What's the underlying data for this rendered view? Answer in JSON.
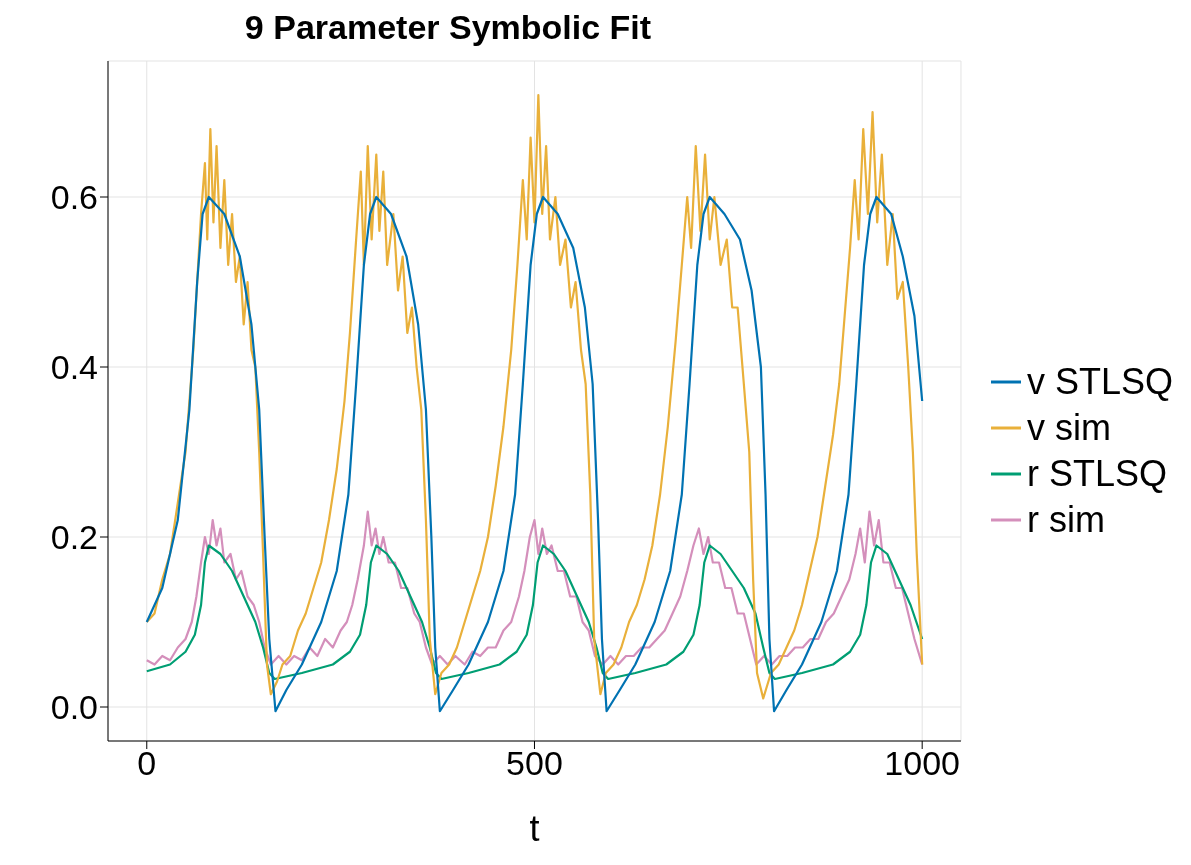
{
  "chart_data": {
    "type": "line",
    "title": "9 Parameter Symbolic Fit",
    "xlabel": "t",
    "xlim": [
      -50,
      1050
    ],
    "ylim": [
      -0.04,
      0.76
    ],
    "xticks": [
      0,
      500,
      1000
    ],
    "yticks": [
      {
        "value": 0,
        "label": "0.0"
      },
      {
        "value": 0.2,
        "label": "0.2"
      },
      {
        "value": 0.4,
        "label": "0.4"
      },
      {
        "value": 0.6,
        "label": "0.6"
      }
    ],
    "grid": true,
    "legend": "right",
    "marker": "none",
    "line_style": "solid",
    "series": [
      {
        "name": "v STLSQ",
        "color": "#0072b2",
        "x": [
          0,
          20,
          40,
          55,
          65,
          72,
          80,
          100,
          120,
          135,
          145,
          152,
          158,
          166,
          180,
          200,
          225,
          245,
          260,
          270,
          280,
          288,
          296,
          315,
          335,
          350,
          360,
          367,
          372,
          378,
          395,
          415,
          440,
          460,
          475,
          485,
          495,
          503,
          511,
          530,
          550,
          565,
          575,
          582,
          587,
          593,
          610,
          630,
          655,
          675,
          690,
          700,
          710,
          718,
          726,
          745,
          765,
          780,
          792,
          798,
          803,
          809,
          825,
          845,
          870,
          890,
          905,
          915,
          925,
          933,
          941,
          960,
          975,
          990,
          1000
        ],
        "values": [
          0.1,
          0.14,
          0.22,
          0.35,
          0.5,
          0.58,
          0.6,
          0.58,
          0.53,
          0.45,
          0.35,
          0.2,
          0.08,
          -0.005,
          0.02,
          0.05,
          0.1,
          0.16,
          0.25,
          0.38,
          0.52,
          0.58,
          0.6,
          0.58,
          0.53,
          0.45,
          0.35,
          0.2,
          0.07,
          -0.005,
          0.02,
          0.05,
          0.1,
          0.16,
          0.25,
          0.38,
          0.52,
          0.58,
          0.6,
          0.58,
          0.54,
          0.47,
          0.38,
          0.22,
          0.08,
          -0.005,
          0.02,
          0.05,
          0.1,
          0.16,
          0.25,
          0.38,
          0.52,
          0.58,
          0.6,
          0.58,
          0.55,
          0.49,
          0.4,
          0.25,
          0.08,
          -0.005,
          0.02,
          0.05,
          0.1,
          0.16,
          0.25,
          0.38,
          0.52,
          0.58,
          0.6,
          0.58,
          0.53,
          0.46,
          0.36
        ]
      },
      {
        "name": "v sim",
        "color": "#e9b03a",
        "x": [
          0,
          10,
          20,
          30,
          40,
          50,
          60,
          65,
          70,
          75,
          78,
          82,
          86,
          90,
          95,
          100,
          105,
          110,
          115,
          120,
          125,
          130,
          135,
          140,
          145,
          150,
          155,
          160,
          168,
          175,
          185,
          195,
          205,
          215,
          225,
          235,
          245,
          255,
          262,
          270,
          276,
          280,
          285,
          290,
          296,
          300,
          305,
          310,
          318,
          324,
          330,
          336,
          342,
          348,
          354,
          360,
          365,
          372,
          380,
          390,
          400,
          410,
          420,
          430,
          440,
          450,
          460,
          470,
          478,
          485,
          490,
          495,
          500,
          505,
          510,
          515,
          520,
          527,
          533,
          540,
          547,
          553,
          560,
          566,
          572,
          577,
          585,
          592,
          602,
          612,
          622,
          632,
          642,
          652,
          662,
          672,
          682,
          690,
          697,
          702,
          708,
          714,
          720,
          726,
          732,
          740,
          748,
          755,
          762,
          770,
          777,
          782,
          787,
          795,
          805,
          815,
          825,
          835,
          845,
          855,
          865,
          875,
          885,
          893,
          900,
          907,
          913,
          918,
          924,
          930,
          936,
          942,
          948,
          955,
          962,
          968,
          975,
          982,
          988,
          993,
          1000
        ],
        "values": [
          0.1,
          0.11,
          0.15,
          0.18,
          0.24,
          0.3,
          0.42,
          0.5,
          0.58,
          0.64,
          0.55,
          0.68,
          0.57,
          0.66,
          0.54,
          0.62,
          0.52,
          0.58,
          0.5,
          0.53,
          0.45,
          0.5,
          0.42,
          0.4,
          0.3,
          0.18,
          0.05,
          0.015,
          0.03,
          0.05,
          0.06,
          0.09,
          0.11,
          0.14,
          0.17,
          0.22,
          0.28,
          0.36,
          0.44,
          0.55,
          0.63,
          0.52,
          0.66,
          0.55,
          0.65,
          0.56,
          0.63,
          0.52,
          0.58,
          0.49,
          0.53,
          0.44,
          0.47,
          0.4,
          0.35,
          0.22,
          0.08,
          0.015,
          0.04,
          0.05,
          0.07,
          0.1,
          0.13,
          0.16,
          0.2,
          0.26,
          0.33,
          0.42,
          0.52,
          0.62,
          0.55,
          0.67,
          0.57,
          0.72,
          0.58,
          0.66,
          0.55,
          0.6,
          0.52,
          0.55,
          0.47,
          0.5,
          0.42,
          0.38,
          0.25,
          0.08,
          0.015,
          0.04,
          0.05,
          0.07,
          0.1,
          0.12,
          0.15,
          0.19,
          0.25,
          0.33,
          0.43,
          0.52,
          0.6,
          0.54,
          0.66,
          0.56,
          0.65,
          0.55,
          0.6,
          0.52,
          0.55,
          0.47,
          0.47,
          0.38,
          0.3,
          0.15,
          0.04,
          0.01,
          0.04,
          0.05,
          0.07,
          0.09,
          0.12,
          0.16,
          0.2,
          0.26,
          0.32,
          0.38,
          0.46,
          0.54,
          0.62,
          0.55,
          0.68,
          0.58,
          0.7,
          0.57,
          0.65,
          0.52,
          0.58,
          0.48,
          0.5,
          0.4,
          0.3,
          0.18,
          0.05
        ]
      },
      {
        "name": "r STLSQ",
        "color": "#009e73",
        "x": [
          0,
          30,
          50,
          62,
          70,
          75,
          80,
          95,
          110,
          125,
          140,
          150,
          158,
          165,
          200,
          240,
          262,
          275,
          283,
          289,
          296,
          310,
          325,
          340,
          355,
          365,
          373,
          380,
          415,
          455,
          477,
          490,
          498,
          504,
          511,
          525,
          540,
          555,
          570,
          580,
          588,
          595,
          630,
          670,
          692,
          705,
          713,
          719,
          726,
          740,
          755,
          770,
          785,
          795,
          803,
          810,
          845,
          885,
          907,
          920,
          928,
          934,
          941,
          955,
          970,
          985,
          1000
        ],
        "values": [
          0.042,
          0.05,
          0.065,
          0.085,
          0.12,
          0.17,
          0.19,
          0.18,
          0.16,
          0.13,
          0.1,
          0.07,
          0.04,
          0.033,
          0.04,
          0.05,
          0.065,
          0.085,
          0.12,
          0.17,
          0.19,
          0.18,
          0.16,
          0.13,
          0.1,
          0.07,
          0.04,
          0.033,
          0.04,
          0.05,
          0.065,
          0.085,
          0.12,
          0.17,
          0.19,
          0.18,
          0.16,
          0.13,
          0.1,
          0.07,
          0.04,
          0.033,
          0.04,
          0.05,
          0.065,
          0.085,
          0.12,
          0.17,
          0.19,
          0.18,
          0.16,
          0.14,
          0.11,
          0.07,
          0.04,
          0.033,
          0.04,
          0.05,
          0.065,
          0.085,
          0.12,
          0.17,
          0.19,
          0.18,
          0.15,
          0.12,
          0.08
        ]
      },
      {
        "name": "r sim",
        "color": "#d48fbb",
        "x": [
          0,
          10,
          20,
          30,
          40,
          50,
          58,
          64,
          70,
          75,
          80,
          85,
          90,
          95,
          100,
          108,
          115,
          122,
          130,
          138,
          145,
          152,
          160,
          170,
          180,
          190,
          200,
          210,
          220,
          230,
          240,
          250,
          258,
          265,
          272,
          280,
          285,
          290,
          295,
          300,
          305,
          312,
          320,
          328,
          336,
          345,
          352,
          360,
          368,
          378,
          388,
          398,
          410,
          420,
          430,
          440,
          450,
          460,
          470,
          480,
          487,
          494,
          500,
          505,
          510,
          516,
          522,
          530,
          538,
          546,
          554,
          562,
          570,
          578,
          588,
          598,
          608,
          618,
          628,
          638,
          648,
          658,
          668,
          678,
          688,
          697,
          705,
          712,
          718,
          724,
          730,
          738,
          746,
          754,
          762,
          770,
          778,
          786,
          796,
          806,
          816,
          826,
          836,
          846,
          856,
          866,
          876,
          886,
          896,
          906,
          914,
          920,
          926,
          932,
          938,
          944,
          950,
          958,
          966,
          974,
          982,
          990,
          1000
        ],
        "values": [
          0.055,
          0.05,
          0.06,
          0.055,
          0.07,
          0.08,
          0.1,
          0.13,
          0.17,
          0.2,
          0.18,
          0.22,
          0.19,
          0.21,
          0.17,
          0.18,
          0.15,
          0.16,
          0.13,
          0.12,
          0.1,
          0.07,
          0.05,
          0.06,
          0.05,
          0.06,
          0.055,
          0.07,
          0.06,
          0.08,
          0.07,
          0.09,
          0.1,
          0.12,
          0.15,
          0.19,
          0.23,
          0.19,
          0.21,
          0.18,
          0.2,
          0.17,
          0.17,
          0.14,
          0.14,
          0.11,
          0.1,
          0.07,
          0.05,
          0.06,
          0.05,
          0.06,
          0.05,
          0.065,
          0.06,
          0.07,
          0.07,
          0.09,
          0.1,
          0.13,
          0.16,
          0.2,
          0.22,
          0.18,
          0.21,
          0.18,
          0.19,
          0.16,
          0.16,
          0.13,
          0.13,
          0.1,
          0.09,
          0.06,
          0.05,
          0.06,
          0.05,
          0.06,
          0.06,
          0.07,
          0.07,
          0.08,
          0.09,
          0.11,
          0.13,
          0.16,
          0.19,
          0.21,
          0.18,
          0.2,
          0.17,
          0.17,
          0.14,
          0.14,
          0.11,
          0.11,
          0.08,
          0.05,
          0.06,
          0.05,
          0.06,
          0.06,
          0.07,
          0.07,
          0.08,
          0.08,
          0.1,
          0.11,
          0.13,
          0.15,
          0.18,
          0.21,
          0.17,
          0.23,
          0.19,
          0.22,
          0.17,
          0.17,
          0.14,
          0.14,
          0.11,
          0.08,
          0.05
        ]
      }
    ]
  }
}
